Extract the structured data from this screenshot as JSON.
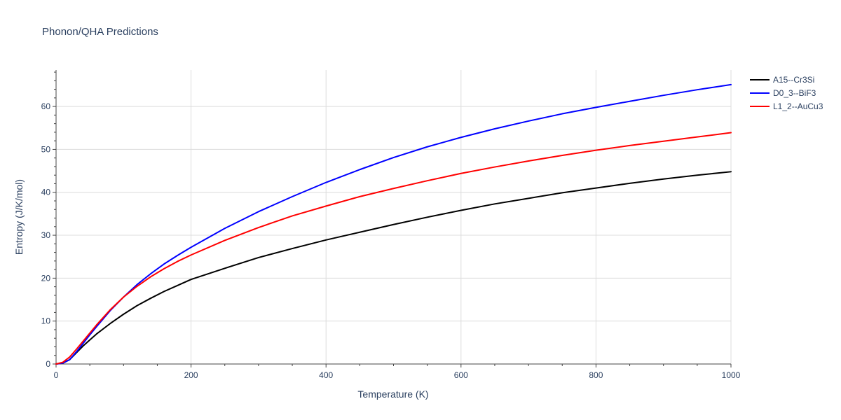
{
  "chart_data": {
    "type": "line",
    "title": "Phonon/QHA Predictions",
    "xlabel": "Temperature (K)",
    "ylabel": "Entropy (J/K/mol)",
    "xlim": [
      0,
      1000
    ],
    "ylim": [
      0,
      68.5
    ],
    "xticks": [
      0,
      200,
      400,
      600,
      800,
      1000
    ],
    "yticks": [
      0,
      10,
      20,
      30,
      40,
      50,
      60
    ],
    "grid": true,
    "legend_position": "top-right",
    "series": [
      {
        "name": "A15--Cr3Si",
        "color": "#000000",
        "x": [
          0,
          10,
          20,
          30,
          40,
          50,
          60,
          80,
          100,
          120,
          140,
          160,
          180,
          200,
          250,
          300,
          350,
          400,
          450,
          500,
          550,
          600,
          650,
          700,
          750,
          800,
          850,
          900,
          950,
          1000
        ],
        "y": [
          0,
          0.2,
          1.0,
          2.6,
          4.2,
          5.6,
          7.0,
          9.4,
          11.6,
          13.6,
          15.3,
          16.9,
          18.3,
          19.7,
          22.3,
          24.8,
          26.9,
          28.9,
          30.7,
          32.5,
          34.2,
          35.8,
          37.3,
          38.6,
          39.9,
          41.0,
          42.1,
          43.1,
          44.0,
          44.8
        ]
      },
      {
        "name": "D0_3--BiF3",
        "color": "#0000ff",
        "x": [
          0,
          10,
          20,
          30,
          40,
          50,
          60,
          80,
          100,
          120,
          140,
          160,
          180,
          200,
          250,
          300,
          350,
          400,
          450,
          500,
          550,
          600,
          650,
          700,
          750,
          800,
          850,
          900,
          950,
          1000
        ],
        "y": [
          0,
          0.2,
          1.0,
          2.8,
          4.8,
          6.8,
          8.7,
          12.4,
          15.6,
          18.5,
          21.0,
          23.3,
          25.3,
          27.2,
          31.6,
          35.5,
          39.0,
          42.3,
          45.3,
          48.1,
          50.6,
          52.8,
          54.8,
          56.6,
          58.3,
          59.8,
          61.2,
          62.6,
          63.9,
          65.1
        ]
      },
      {
        "name": "L1_2--AuCu3",
        "color": "#ff0000",
        "x": [
          0,
          10,
          20,
          30,
          40,
          50,
          60,
          80,
          100,
          120,
          140,
          160,
          180,
          200,
          250,
          300,
          350,
          400,
          450,
          500,
          550,
          600,
          650,
          700,
          750,
          800,
          850,
          900,
          950,
          1000
        ],
        "y": [
          0,
          0.4,
          1.6,
          3.4,
          5.3,
          7.2,
          9.1,
          12.6,
          15.6,
          18.1,
          20.3,
          22.2,
          23.9,
          25.4,
          28.8,
          31.8,
          34.5,
          36.8,
          39.0,
          40.9,
          42.7,
          44.4,
          45.9,
          47.3,
          48.6,
          49.8,
          50.9,
          51.9,
          52.9,
          53.9
        ]
      }
    ]
  }
}
